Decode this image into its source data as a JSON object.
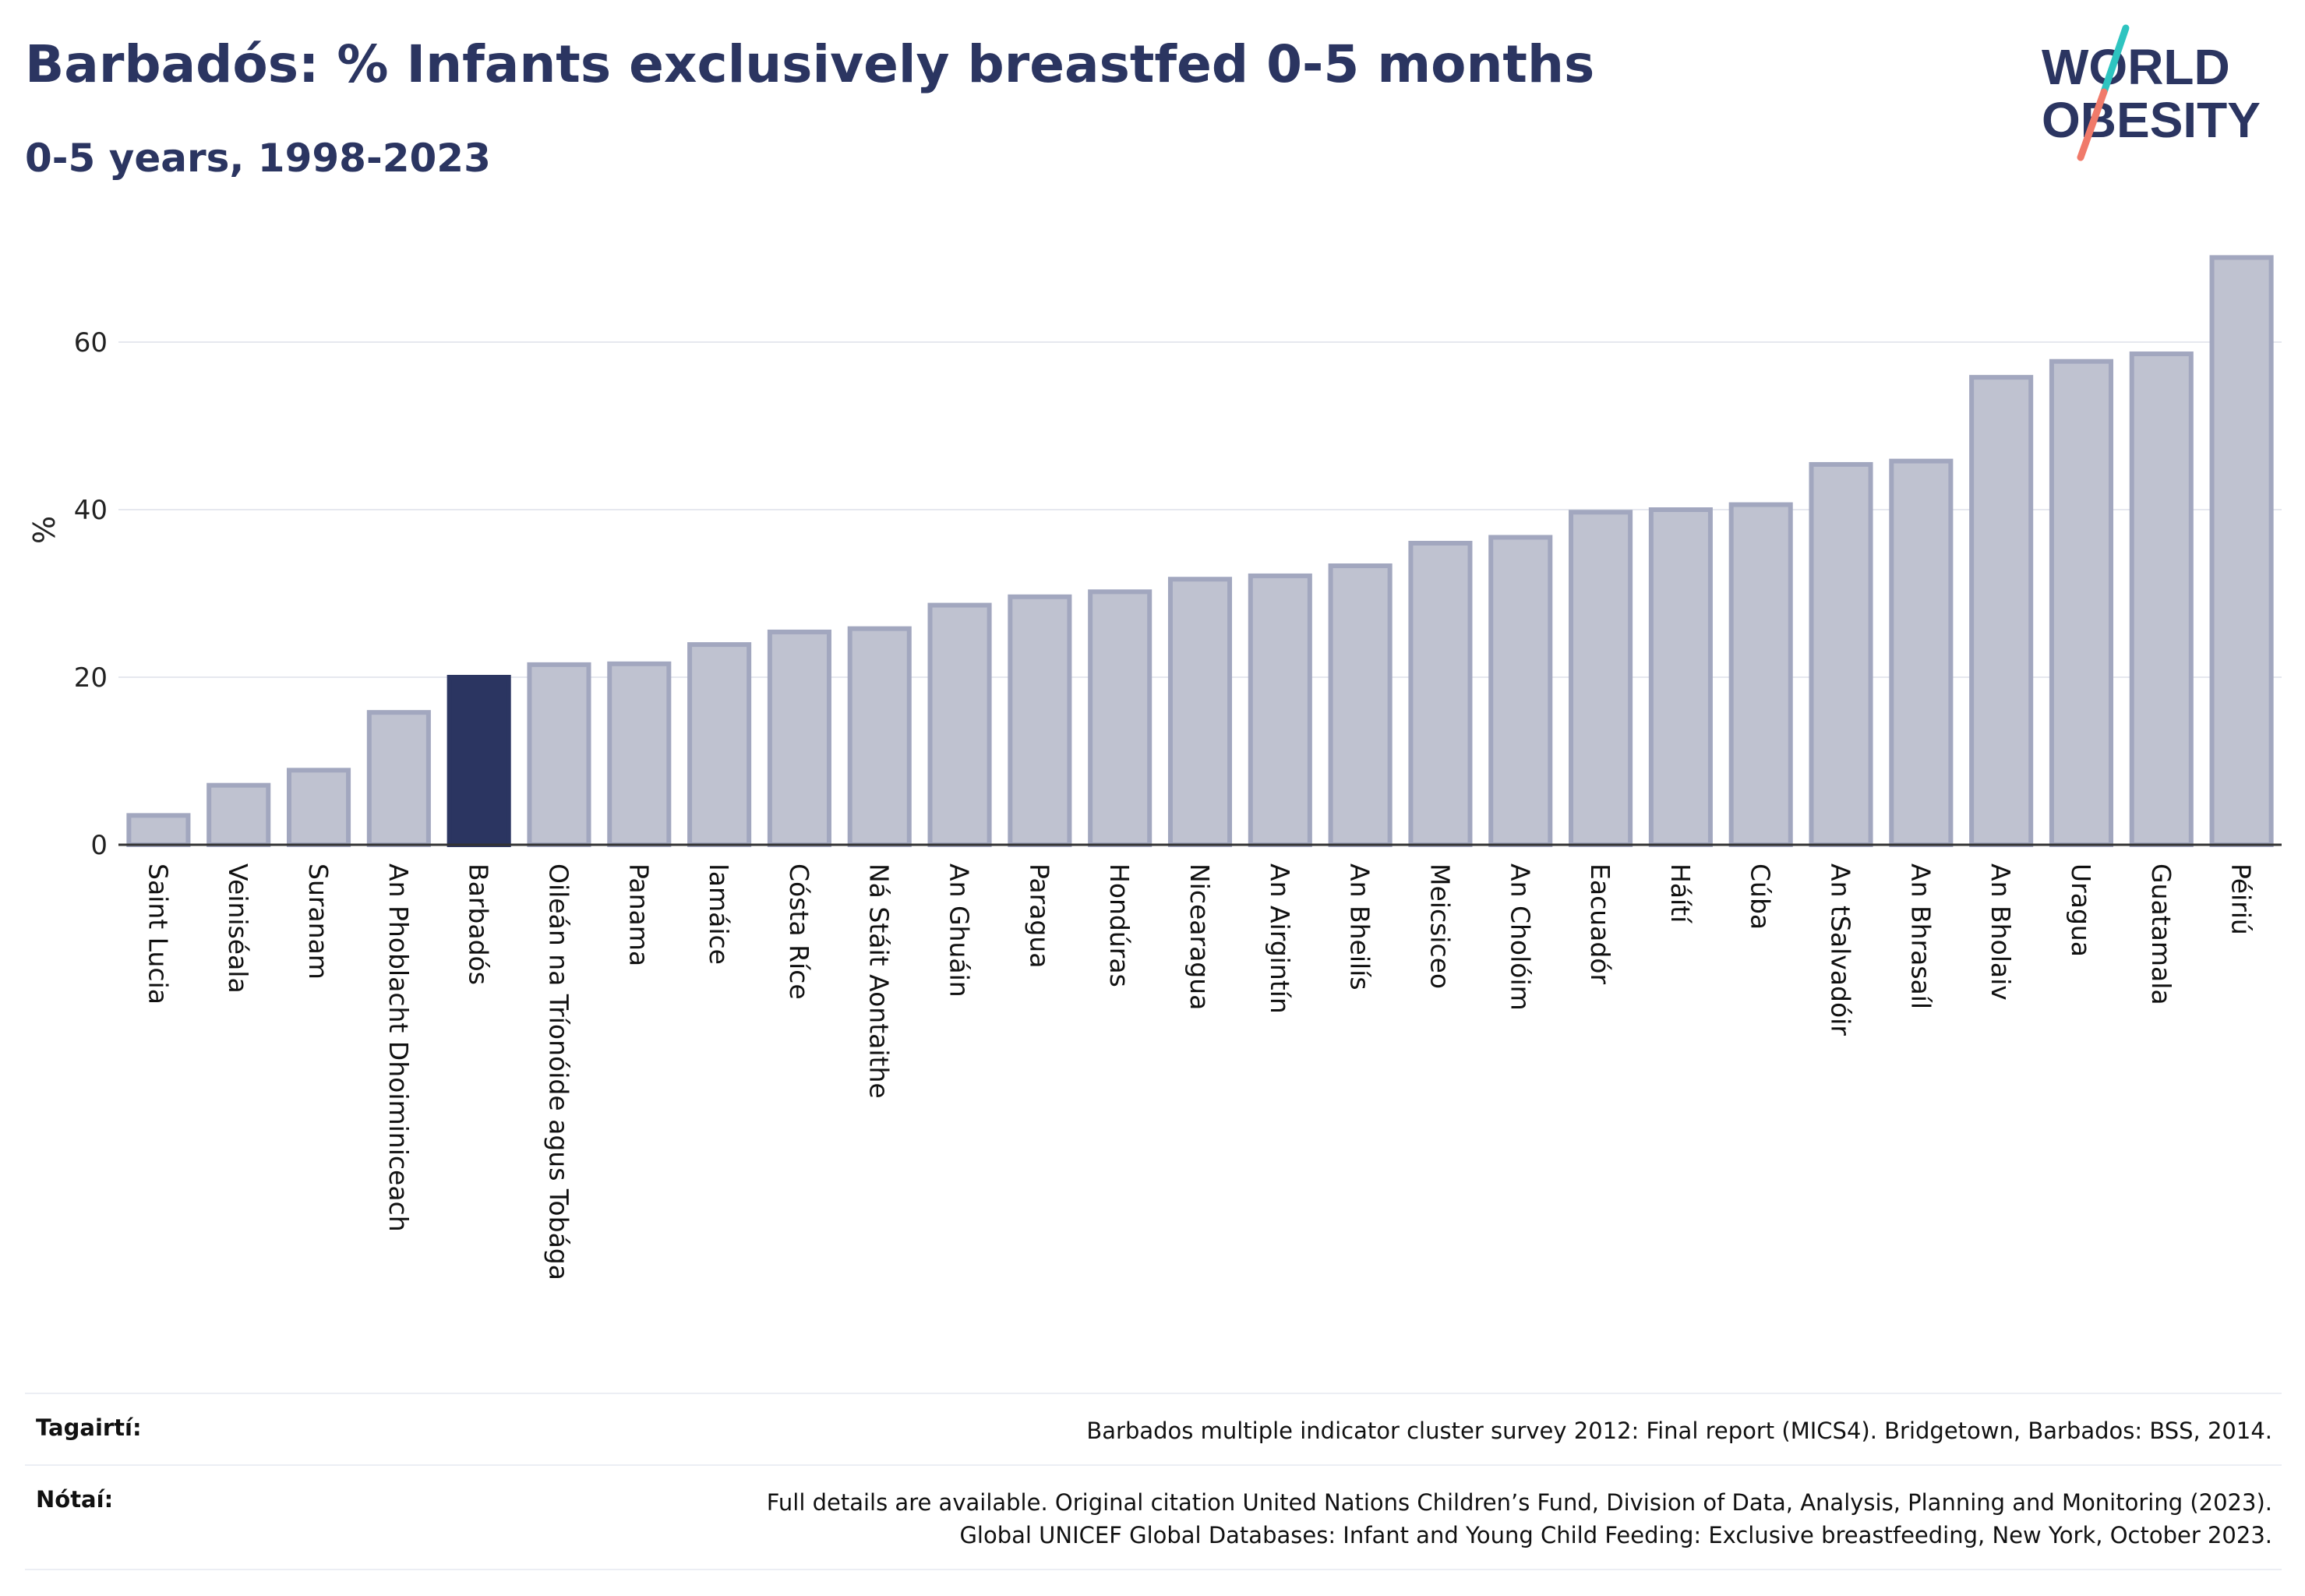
{
  "header": {
    "title": "Barbadós: % Infants exclusively breastfed 0-5 months",
    "subtitle": "0-5 years, 1998-2023"
  },
  "logo": {
    "line1": "WORLD",
    "line2": "OBESITY"
  },
  "colors": {
    "highlight": "#2b3561",
    "bar_fill": "#bfc2d0",
    "bar_stroke": "#a2a7bf",
    "brand_teal": "#2ec4c0",
    "brand_coral": "#f07a6a"
  },
  "chart_data": {
    "type": "bar",
    "title": "Barbadós: % Infants exclusively breastfed 0-5 months",
    "subtitle": "0-5 years, 1998-2023",
    "ylabel": "%",
    "xlabel": "",
    "ylim": [
      0,
      72
    ],
    "yticks": [
      0,
      20,
      40,
      60
    ],
    "grid": true,
    "highlight": "Barbadós",
    "categories": [
      "Saint Lucia",
      "Veiniséala",
      "Suranam",
      "An Phoblacht Dhoiminiceach",
      "Barbadós",
      "Oileán na Tríonóide agus Tobága",
      "Panama",
      "Iamáice",
      "Cósta Ríce",
      "Ná Stáit Aontaithe",
      "An Ghuáin",
      "Paragua",
      "Hondúras",
      "Nicearagua",
      "An Airgintín",
      "An Bheilís",
      "Meicsiceo",
      "An Cholóim",
      "Eacuadór",
      "Háítí",
      "Cúba",
      "An tSalvadóir",
      "An Bhrasaíl",
      "An Bholaiv",
      "Uragua",
      "Guatamala",
      "Péiriú"
    ],
    "values": [
      3.5,
      7.1,
      8.9,
      15.8,
      20.0,
      21.5,
      21.6,
      23.9,
      25.4,
      25.8,
      28.6,
      29.6,
      30.2,
      31.7,
      32.1,
      33.3,
      36.0,
      36.7,
      39.7,
      40.0,
      40.6,
      45.4,
      45.8,
      55.8,
      57.7,
      58.6,
      70.1
    ]
  },
  "footer": {
    "reference_label": "Tagairtí:",
    "reference_text": "Barbados multiple indicator cluster survey 2012: Final report (MICS4). Bridgetown, Barbados: BSS, 2014.",
    "notes_label": "Nótaí:",
    "notes_line1": "Full details are available. Original citation United Nations Children’s Fund, Division of Data, Analysis, Planning and Monitoring (2023).",
    "notes_line2": "Global UNICEF Global Databases: Infant and Young Child Feeding: Exclusive breastfeeding, New York, October 2023."
  }
}
